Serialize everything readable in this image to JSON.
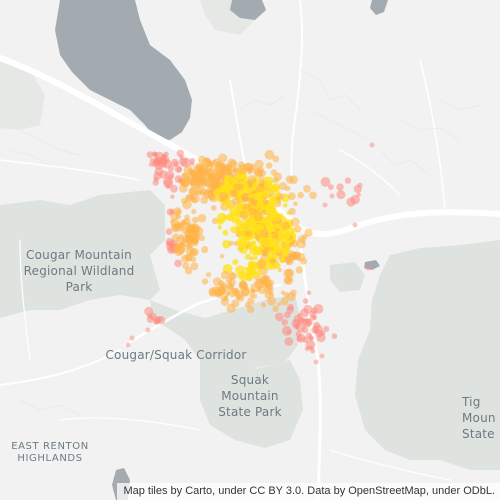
{
  "map": {
    "place_labels": [
      {
        "id": "cougar-mountain",
        "lines": [
          "Cougar Mountain",
          "Regional Wildland",
          "Park"
        ]
      },
      {
        "id": "cougar-squak",
        "lines": [
          "Cougar/Squak Corridor"
        ]
      },
      {
        "id": "squak-mountain",
        "lines": [
          "Squak",
          "Mountain",
          "State Park"
        ]
      },
      {
        "id": "east-renton",
        "lines": [
          "EAST RENTON",
          "HIGHLANDS"
        ]
      },
      {
        "id": "tiger-mountain",
        "lines": [
          "Tig",
          "Moun",
          "State"
        ]
      }
    ],
    "attribution": "Map tiles by Carto, under CC BY 3.0. Data by OpenStreetMap, under ODbL.",
    "colors": {
      "land": "#f2f2f2",
      "park": "#dfe3e0",
      "water": "#a3abb0",
      "road": "#ffffff",
      "point_hot": "#ffe119",
      "point_mid": "#ffb347",
      "point_cool": "#ff8a80"
    }
  }
}
